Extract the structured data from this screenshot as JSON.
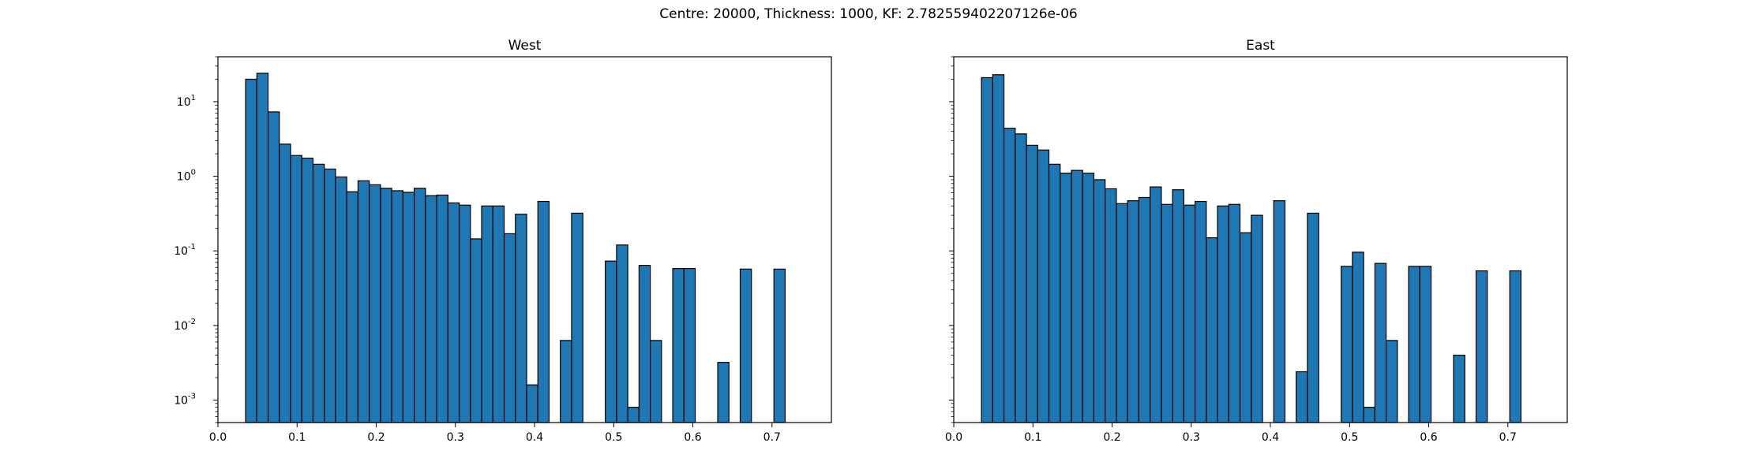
{
  "suptitle": "Centre: 20000, Thickness: 1000, KF: 2.782559402207126e-06",
  "chart_data": [
    {
      "type": "bar",
      "title": "West",
      "yscale": "log",
      "xlim": [
        0.0,
        0.775
      ],
      "ylim": [
        0.0005,
        40
      ],
      "bin_start": 0.035,
      "bin_width": 0.0142,
      "xticks": [
        "0.0",
        "0.1",
        "0.2",
        "0.3",
        "0.4",
        "0.5",
        "0.6",
        "0.7"
      ],
      "yticks": [
        "10^-3",
        "10^-2",
        "10^-1",
        "10^0",
        "10^1"
      ],
      "bar_color": "#1f77b4",
      "edge_color": "#000000",
      "values": [
        20,
        24,
        7.3,
        2.7,
        1.9,
        1.75,
        1.45,
        1.25,
        0.98,
        0.62,
        0.87,
        0.77,
        0.69,
        0.64,
        0.61,
        0.69,
        0.55,
        0.56,
        0.44,
        0.41,
        0.145,
        0.4,
        0.4,
        0.17,
        0.31,
        0.0016,
        0.46,
        0,
        0.0063,
        0.32,
        0,
        0,
        0.073,
        0.12,
        0.0008,
        0.064,
        0.0063,
        0,
        0.058,
        0.058,
        0,
        0,
        0.0032,
        0,
        0.057,
        0,
        0,
        0.057
      ]
    },
    {
      "type": "bar",
      "title": "East",
      "yscale": "log",
      "xlim": [
        0.0,
        0.775
      ],
      "ylim": [
        0.0005,
        40
      ],
      "bin_start": 0.035,
      "bin_width": 0.0142,
      "xticks": [
        "0.0",
        "0.1",
        "0.2",
        "0.3",
        "0.4",
        "0.5",
        "0.6",
        "0.7"
      ],
      "bar_color": "#1f77b4",
      "edge_color": "#000000",
      "values": [
        21,
        23,
        4.4,
        3.7,
        2.6,
        2.25,
        1.45,
        1.1,
        1.2,
        1.1,
        0.9,
        0.68,
        0.43,
        0.47,
        0.52,
        0.72,
        0.42,
        0.66,
        0.41,
        0.46,
        0.15,
        0.4,
        0.42,
        0.175,
        0.3,
        0,
        0.47,
        0,
        0.0024,
        0.32,
        0,
        0,
        0.062,
        0.096,
        0.0008,
        0.068,
        0.0063,
        0,
        0.062,
        0.062,
        0,
        0,
        0.004,
        0,
        0.054,
        0,
        0,
        0.054
      ]
    }
  ]
}
